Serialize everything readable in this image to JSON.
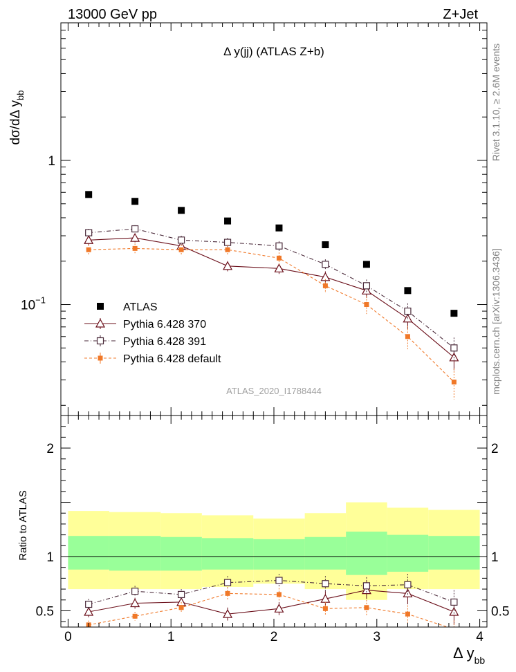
{
  "header": {
    "left": "13000 GeV pp",
    "right": "Z+Jet"
  },
  "side_text": {
    "rivet": "Rivet 3.1.10, ≥ 2.6M events",
    "mcplots": "mcplots.cern.ch [arXiv:1306.3436]"
  },
  "main_title": "Δ y(jj) (ATLAS Z+b)",
  "watermark": "ATLAS_2020_I1788444",
  "y_label_main": "dσ/dΔ y",
  "y_label_main_sub": "bb",
  "y_label_ratio": "Ratio to ATLAS",
  "x_label": "Δ y",
  "x_label_sub": "bb",
  "colors": {
    "atlas": "#000000",
    "p370": "#6b0f1a",
    "p391": "#4a2a3a",
    "pdef": "#f07828",
    "band_inner": "#99ff99",
    "band_outer": "#ffff99"
  },
  "chart_data": {
    "type": "scatter",
    "x": [
      0.2,
      0.65,
      1.1,
      1.55,
      2.05,
      2.5,
      2.9,
      3.3,
      3.75
    ],
    "x_edges": [
      0,
      0.4,
      0.9,
      1.3,
      1.8,
      2.3,
      2.7,
      3.1,
      3.5,
      4.0
    ],
    "xlim": [
      -0.07,
      4.07
    ],
    "x_ticks": [
      0,
      1,
      2,
      3,
      4
    ],
    "main": {
      "scale": "log",
      "ylim": [
        0.017,
        9.0
      ],
      "y_ticks": [
        {
          "value": 1,
          "label": "1"
        },
        {
          "value": 0.1,
          "label": "10",
          "exp": "−1"
        }
      ],
      "series": [
        {
          "name": "ATLAS",
          "style": "atlas",
          "values": [
            0.58,
            0.52,
            0.45,
            0.38,
            0.34,
            0.26,
            0.19,
            0.125,
            0.087
          ]
        },
        {
          "name": "Pythia 6.428 370",
          "style": "p370",
          "values": [
            0.28,
            0.29,
            0.255,
            0.185,
            0.178,
            0.155,
            0.125,
            0.08,
            0.043
          ],
          "errors": [
            0.02,
            0.02,
            0.02,
            0.015,
            0.015,
            0.015,
            0.014,
            0.012,
            0.008
          ]
        },
        {
          "name": "Pythia 6.428 391",
          "style": "p391",
          "values": [
            0.315,
            0.335,
            0.28,
            0.27,
            0.255,
            0.19,
            0.135,
            0.09,
            0.05
          ],
          "errors": [
            0.02,
            0.02,
            0.02,
            0.02,
            0.02,
            0.016,
            0.014,
            0.012,
            0.009
          ]
        },
        {
          "name": "Pythia 6.428 default",
          "style": "pdef",
          "values": [
            0.24,
            0.245,
            0.24,
            0.24,
            0.21,
            0.135,
            0.1,
            0.06,
            0.029
          ],
          "errors": [
            0.02,
            0.02,
            0.02,
            0.02,
            0.02,
            0.015,
            0.014,
            0.011,
            0.007
          ]
        }
      ]
    },
    "ratio": {
      "ylim": [
        0.35,
        2.3
      ],
      "y_ticks": [
        {
          "value": 0.5,
          "label": "0.5"
        },
        {
          "value": 1,
          "label": "1"
        },
        {
          "value": 2,
          "label": "2"
        }
      ],
      "band_inner": [
        [
          0.88,
          1.19
        ],
        [
          0.87,
          1.19
        ],
        [
          0.87,
          1.18
        ],
        [
          0.88,
          1.17
        ],
        [
          0.88,
          1.16
        ],
        [
          0.88,
          1.18
        ],
        [
          0.83,
          1.23
        ],
        [
          0.86,
          1.2
        ],
        [
          0.88,
          1.19
        ]
      ],
      "band_outer": [
        [
          0.7,
          1.42
        ],
        [
          0.7,
          1.41
        ],
        [
          0.7,
          1.4
        ],
        [
          0.72,
          1.38
        ],
        [
          0.75,
          1.35
        ],
        [
          0.7,
          1.4
        ],
        [
          0.6,
          1.5
        ],
        [
          0.7,
          1.45
        ],
        [
          0.7,
          1.43
        ]
      ],
      "series": [
        {
          "name": "Pythia 6.428 370",
          "style": "p370",
          "values": [
            0.49,
            0.57,
            0.58,
            0.47,
            0.52,
            0.61,
            0.69,
            0.66,
            0.49
          ],
          "errors": [
            0.05,
            0.05,
            0.05,
            0.06,
            0.06,
            0.07,
            0.08,
            0.1,
            0.12
          ]
        },
        {
          "name": "Pythia 6.428 391",
          "style": "p391",
          "values": [
            0.56,
            0.68,
            0.65,
            0.76,
            0.78,
            0.75,
            0.73,
            0.74,
            0.58
          ],
          "errors": [
            0.05,
            0.05,
            0.05,
            0.06,
            0.06,
            0.07,
            0.08,
            0.1,
            0.11
          ]
        },
        {
          "name": "Pythia 6.428 default",
          "style": "pdef",
          "values": [
            0.37,
            0.45,
            0.53,
            0.66,
            0.65,
            0.52,
            0.53,
            0.47,
            0.33
          ],
          "errors": [
            0.04,
            0.04,
            0.05,
            0.06,
            0.06,
            0.06,
            0.07,
            0.08,
            0.08
          ]
        }
      ]
    },
    "legend": {
      "placement": "lower-left",
      "entries": [
        {
          "label": "ATLAS",
          "style": "atlas"
        },
        {
          "label": "Pythia 6.428 370",
          "style": "p370"
        },
        {
          "label": "Pythia 6.428 391",
          "style": "p391"
        },
        {
          "label": "Pythia 6.428 default",
          "style": "pdef"
        }
      ]
    }
  }
}
